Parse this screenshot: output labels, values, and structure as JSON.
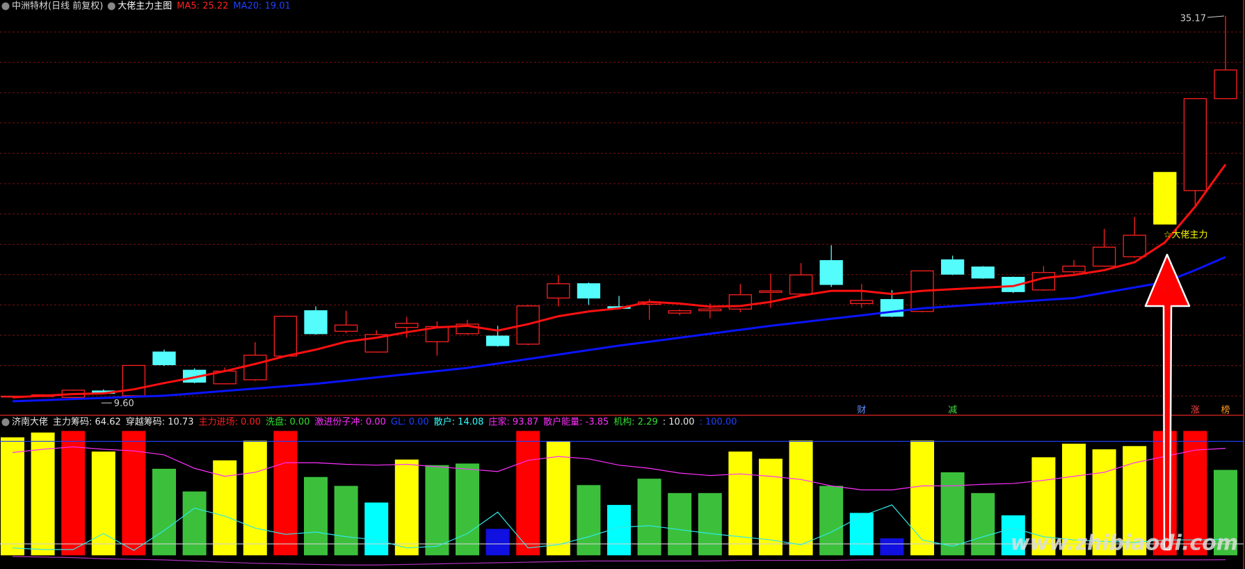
{
  "header": {
    "stock": "中洲特材(日线 前复权)",
    "indicator": "大佬主力主图"
  },
  "chart_data": [
    {
      "type": "candlestick",
      "series_labels": [
        {
          "text": "MA5: 25.22",
          "color": "#ff2020"
        },
        {
          "text": "MA20: 19.01",
          "color": "#2040ff"
        }
      ],
      "open": [
        9.66,
        9.66,
        9.6,
        10.03,
        9.71,
        12.64,
        11.42,
        10.51,
        10.78,
        12.37,
        15.41,
        14.03,
        12.64,
        14.29,
        13.33,
        13.87,
        13.71,
        13.17,
        16.26,
        17.22,
        15.68,
        15.84,
        15.25,
        15.41,
        15.52,
        16.64,
        16.53,
        18.77,
        15.89,
        16.16,
        15.36,
        18.82,
        18.34,
        17.65,
        16.8,
        18.02,
        18.4,
        19.03,
        21.22,
        23.46,
        29.63
      ],
      "high": [
        9.71,
        9.82,
        10.12,
        10.14,
        11.76,
        12.8,
        11.55,
        11.6,
        13.3,
        15.06,
        15.7,
        15.4,
        14.1,
        15.0,
        14.7,
        14.8,
        14.4,
        15.8,
        17.8,
        17.3,
        16.4,
        16.2,
        15.5,
        15.9,
        17.2,
        17.9,
        18.6,
        19.8,
        17.2,
        16.8,
        18.1,
        19.1,
        18.4,
        17.7,
        18.4,
        18.8,
        20.9,
        21.7,
        24.68,
        29.65,
        35.17
      ],
      "low": [
        9.6,
        9.62,
        9.62,
        9.8,
        9.68,
        11.7,
        10.55,
        10.48,
        10.7,
        12.3,
        13.8,
        13.9,
        12.6,
        13.6,
        12.4,
        13.8,
        13.0,
        13.1,
        15.7,
        15.8,
        15.5,
        14.8,
        15.1,
        14.9,
        15.3,
        15.6,
        16.4,
        17.0,
        15.6,
        14.98,
        15.3,
        17.8,
        17.55,
        16.6,
        16.75,
        17.9,
        18.35,
        18.95,
        21.22,
        22.5,
        29.6
      ],
      "close": [
        9.68,
        9.77,
        10.08,
        9.87,
        11.74,
        11.79,
        10.62,
        11.36,
        12.43,
        15.04,
        13.87,
        14.45,
        13.81,
        14.56,
        14.35,
        14.51,
        13.07,
        15.73,
        17.22,
        16.26,
        15.57,
        16.0,
        15.41,
        15.52,
        16.48,
        16.74,
        17.81,
        17.17,
        16.1,
        15.04,
        18.08,
        17.86,
        17.6,
        16.69,
        17.97,
        18.4,
        19.67,
        20.47,
        24.68,
        29.63,
        31.55
      ],
      "up_color": "#ff2020",
      "down_color": "#54fcfc",
      "series": [
        {
          "name": "MA5",
          "color": "#ff1010",
          "values": [
            9.6,
            9.71,
            9.82,
            9.87,
            10.14,
            10.56,
            10.94,
            11.36,
            11.84,
            12.37,
            12.8,
            13.33,
            13.6,
            13.97,
            14.29,
            14.4,
            14.08,
            14.51,
            15.04,
            15.36,
            15.57,
            16.0,
            15.89,
            15.68,
            15.73,
            16.0,
            16.42,
            16.74,
            16.74,
            16.53,
            16.74,
            16.85,
            16.96,
            17.06,
            17.6,
            17.81,
            18.13,
            18.66,
            19.99,
            22.39,
            25.22
          ]
        },
        {
          "name": "MA20",
          "color": "#0a14ff",
          "values": [
            9.34,
            9.41,
            9.49,
            9.56,
            9.64,
            9.71,
            9.87,
            10.03,
            10.19,
            10.35,
            10.51,
            10.72,
            10.94,
            11.15,
            11.36,
            11.58,
            11.87,
            12.17,
            12.47,
            12.77,
            13.07,
            13.33,
            13.6,
            13.87,
            14.13,
            14.4,
            14.63,
            14.87,
            15.1,
            15.34,
            15.57,
            15.71,
            15.85,
            15.99,
            16.13,
            16.26,
            16.62,
            16.97,
            17.33,
            18.13,
            19.01
          ]
        }
      ],
      "signal": {
        "index": 38,
        "text": "☆大佬主力",
        "color": "#ffff00"
      },
      "annotations": [
        {
          "index": 40,
          "value": 35.17,
          "label": "35.17"
        },
        {
          "index": 3,
          "value": 9.6,
          "label": "9.60"
        }
      ],
      "markers": [
        {
          "index": 28,
          "text": "财",
          "color": "#6090ff"
        },
        {
          "index": 31,
          "text": "减",
          "color": "#40e040"
        },
        {
          "index": 39,
          "text": "涨",
          "color": "#ff4040"
        },
        {
          "index": 40,
          "text": "榜",
          "color": "#ff9a20"
        }
      ],
      "ylim": [
        8.54,
        36.24
      ]
    },
    {
      "type": "bar",
      "title": "济南大佬",
      "readouts": [
        {
          "text": "主力筹码: 64.62",
          "color": "#e8e8e8"
        },
        {
          "text": "穿越筹码: 10.73",
          "color": "#e8e8e8"
        },
        {
          "text": "主力进场: 0.00",
          "color": "#ff2020"
        },
        {
          "text": "洗盘: 0.00",
          "color": "#30e030"
        },
        {
          "text": "激进份子冲: 0.00",
          "color": "#ff30ff"
        },
        {
          "text": "GL: 0.00",
          "color": "#2040ff"
        },
        {
          "text": "散户: 14.08",
          "color": "#30ffff"
        },
        {
          "text": "庄家: 93.87",
          "color": "#ff30ff"
        },
        {
          "text": "散户能量: -3.85",
          "color": "#ff30ff"
        },
        {
          "text": "机构: 2.29",
          "color": "#30e030"
        },
        {
          "text": ": 10.00",
          "color": "#e8e8e8"
        },
        {
          "text": ": 100.00",
          "color": "#2040ff"
        }
      ],
      "values": [
        103.5,
        107.7,
        109.1,
        91,
        109.1,
        75.9,
        56,
        83.3,
        100.6,
        109.1,
        68.7,
        60.9,
        46.3,
        84,
        79.1,
        80.5,
        23.2,
        109.1,
        100,
        61.6,
        44.2,
        67.2,
        54.6,
        54.6,
        91,
        84.7,
        100.7,
        60.9,
        37.2,
        14.9,
        100.7,
        72.8,
        54.6,
        35.1,
        86,
        97.9,
        93,
        95.8,
        109.1,
        109.1,
        74.9
      ],
      "colors": [
        "#ffff00",
        "#ffff00",
        "#ff0000",
        "#ffff00",
        "#ff0000",
        "#3cc03c",
        "#3cc03c",
        "#ffff00",
        "#ffff00",
        "#ff0000",
        "#3cc03c",
        "#3cc03c",
        "#00ffff",
        "#ffff00",
        "#3cc03c",
        "#3cc03c",
        "#1010e0",
        "#ff0000",
        "#ffff00",
        "#3cc03c",
        "#00ffff",
        "#3cc03c",
        "#3cc03c",
        "#3cc03c",
        "#ffff00",
        "#ffff00",
        "#ffff00",
        "#3cc03c",
        "#00ffff",
        "#1010e0",
        "#ffff00",
        "#3cc03c",
        "#3cc03c",
        "#00ffff",
        "#ffff00",
        "#ffff00",
        "#ffff00",
        "#ffff00",
        "#ff0000",
        "#ff0000",
        "#3cc03c"
      ],
      "series": [
        {
          "name": "庄家",
          "color": "#ff30ff",
          "values": [
            90.2,
            93.0,
            95.1,
            93.0,
            91.6,
            88.1,
            76.3,
            69.3,
            72.8,
            81.2,
            81.2,
            79.8,
            79.1,
            79.8,
            77.7,
            75.6,
            73.5,
            83.3,
            86.7,
            84.6,
            79.1,
            76.3,
            72.1,
            70.0,
            71.4,
            69.3,
            66.5,
            60.9,
            57.4,
            57.4,
            60.9,
            60.9,
            62.3,
            63.0,
            65.8,
            69.3,
            72.8,
            81.2,
            86.7,
            92.3,
            93.87
          ]
        },
        {
          "name": "散户",
          "color": "#30e8e8",
          "values": [
            6.5,
            5.1,
            5.1,
            19.1,
            4.4,
            21.8,
            41.4,
            34.4,
            23.9,
            18.4,
            20.4,
            16.3,
            13.5,
            6.5,
            7.9,
            19.1,
            37.9,
            6.5,
            9.3,
            16.3,
            24.6,
            26.0,
            22.5,
            19.1,
            16.3,
            13.5,
            9.3,
            20.4,
            34.4,
            44.2,
            13.5,
            7.9,
            16.3,
            23.9,
            16.3,
            13.5,
            12.1,
            11.4,
            13.5,
            13.5,
            14.08
          ]
        },
        {
          "name": "散户能量",
          "color": "#b030c0",
          "values": [
            -1,
            -1.5,
            -2,
            -3,
            -3.5,
            -4,
            -5,
            -6,
            -7,
            -7.5,
            -8,
            -8.5,
            -8.5,
            -8,
            -7.5,
            -7,
            -6.5,
            -6,
            -5.5,
            -5,
            -5,
            -5,
            -5,
            -5,
            -4.5,
            -4.5,
            -4.5,
            -4.5,
            -4,
            -4,
            -4,
            -4,
            -4,
            -4,
            -4,
            -4,
            -4,
            -4,
            -4,
            -4,
            -3.85
          ]
        }
      ],
      "ref_lines": [
        {
          "value": 100,
          "color": "#2040ff"
        },
        {
          "value": 10,
          "color": "#d0d0d0"
        }
      ],
      "ylim": [
        -12,
        121
      ]
    }
  ],
  "watermark": "www.zhibiaodi.com"
}
